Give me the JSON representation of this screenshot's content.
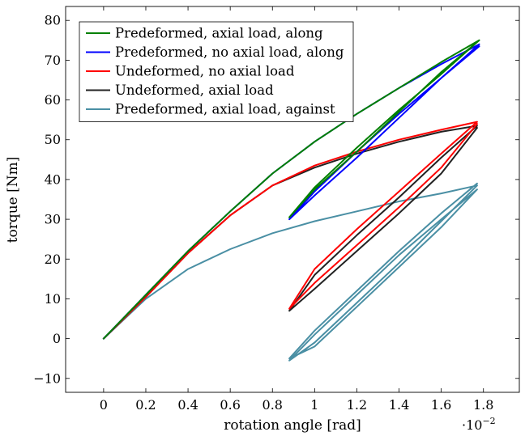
{
  "chart_data": {
    "type": "line",
    "title": "",
    "xlabel": "rotation angle [rad]",
    "ylabel": "torque [Nm]",
    "x_multiplier_label": "·10",
    "x_multiplier_exponent": "−2",
    "xlim": [
      -0.18,
      1.97
    ],
    "ylim": [
      -13.5,
      83.5
    ],
    "xticks": [
      0,
      0.2,
      0.4,
      0.6,
      0.8,
      1,
      1.2,
      1.4,
      1.6,
      1.8
    ],
    "xtick_labels": [
      "0",
      "0.2",
      "0.4",
      "0.6",
      "0.8",
      "1",
      "1.2",
      "1.4",
      "1.6",
      "1.8"
    ],
    "yticks": [
      -10,
      0,
      10,
      20,
      30,
      40,
      50,
      60,
      70,
      80
    ],
    "ytick_labels": [
      "−10",
      "0",
      "10",
      "20",
      "30",
      "40",
      "50",
      "60",
      "70",
      "80"
    ],
    "grid": false,
    "legend_position": "top-left",
    "series": [
      {
        "name": "Predeformed, axial load, along",
        "color": "#008000",
        "x": [
          0,
          0.2,
          0.4,
          0.6,
          0.8,
          1.0,
          1.2,
          1.4,
          1.6,
          1.78,
          1.6,
          1.4,
          1.2,
          1.0,
          0.88,
          1.0,
          1.2,
          1.4,
          1.6,
          1.78
        ],
        "y": [
          0,
          11,
          22,
          32,
          41.5,
          49.5,
          56.5,
          63,
          69.5,
          75,
          67,
          57,
          47,
          37.5,
          30.5,
          38,
          48,
          57.5,
          66.5,
          75
        ]
      },
      {
        "name": "Predeformed, no axial load, along",
        "color": "#0000ff",
        "x": [
          0,
          0.2,
          0.4,
          0.6,
          0.8,
          1.0,
          1.2,
          1.4,
          1.6,
          1.78,
          1.6,
          1.4,
          1.2,
          1.0,
          0.88,
          1.0,
          1.2,
          1.4,
          1.6,
          1.78
        ],
        "y": [
          0,
          11,
          22,
          32,
          41.5,
          49.5,
          56.5,
          63,
          69,
          74,
          65.5,
          55.5,
          45.5,
          36,
          30,
          37,
          47,
          56.5,
          65.5,
          73.5
        ]
      },
      {
        "name": "Undeformed, no axial load",
        "color": "#ff0000",
        "x": [
          0,
          0.2,
          0.4,
          0.6,
          0.8,
          1.0,
          1.2,
          1.4,
          1.6,
          1.77,
          1.6,
          1.4,
          1.2,
          1.0,
          0.88,
          1.0,
          1.2,
          1.4,
          1.6,
          1.77
        ],
        "y": [
          0,
          10.5,
          21.5,
          31,
          38.5,
          43.5,
          47,
          50,
          52.5,
          54.5,
          46.5,
          37,
          27.5,
          17.5,
          7.5,
          14,
          23.5,
          33,
          43,
          54
        ]
      },
      {
        "name": "Undeformed, axial load",
        "color": "#222222",
        "x": [
          0,
          0.2,
          0.4,
          0.6,
          0.8,
          1.0,
          1.2,
          1.4,
          1.6,
          1.77,
          1.6,
          1.4,
          1.2,
          1.0,
          0.88,
          1.0,
          1.2,
          1.4,
          1.6,
          1.77
        ],
        "y": [
          0,
          10.5,
          21.5,
          31,
          38.5,
          43,
          46.5,
          49.5,
          52,
          53.5,
          45.5,
          35.5,
          26,
          16,
          7,
          12.5,
          22,
          31.5,
          41.5,
          53
        ]
      },
      {
        "name": "Predeformed, axial load, against",
        "color": "#4a8fa4",
        "x": [
          0,
          0.2,
          0.4,
          0.6,
          0.8,
          1.0,
          1.2,
          1.4,
          1.6,
          1.77,
          1.6,
          1.4,
          1.2,
          1.0,
          0.88,
          1.0,
          1.2,
          1.4,
          1.6,
          1.77,
          1.6,
          1.4,
          1.2,
          1.0,
          0.88,
          1.0,
          1.2,
          1.4,
          1.6,
          1.77
        ],
        "y": [
          0,
          10,
          17.5,
          22.5,
          26.5,
          29.5,
          32,
          34.5,
          36.5,
          38.5,
          29.5,
          19,
          9,
          -1,
          -5.5,
          1,
          11,
          21,
          30,
          37.5,
          28,
          18,
          8,
          -2,
          -5,
          2,
          12,
          22,
          31.5,
          39
        ]
      }
    ]
  }
}
